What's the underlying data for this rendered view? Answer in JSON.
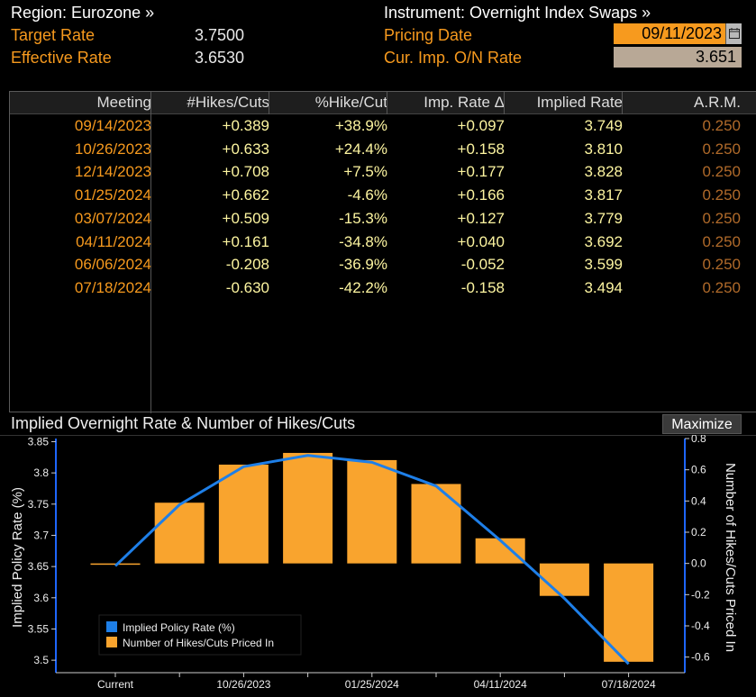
{
  "header": {
    "region": "Region: Eurozone »",
    "instrument": "Instrument: Overnight Index Swaps »",
    "target_rate_label": "Target Rate",
    "target_rate_value": "3.7500",
    "effective_rate_label": "Effective Rate",
    "effective_rate_value": "3.6530",
    "pricing_date_label": "Pricing Date",
    "pricing_date_value": "09/11/2023",
    "cur_imp_label": "Cur. Imp. O/N Rate",
    "cur_imp_value": "3.651"
  },
  "table": {
    "columns": [
      "Meeting",
      "#Hikes/Cuts",
      "%Hike/Cut",
      "Imp. Rate Δ",
      "Implied Rate",
      "A.R.M."
    ],
    "rows": [
      [
        "09/14/2023",
        "+0.389",
        "+38.9%",
        "+0.097",
        "3.749",
        "0.250"
      ],
      [
        "10/26/2023",
        "+0.633",
        "+24.4%",
        "+0.158",
        "3.810",
        "0.250"
      ],
      [
        "12/14/2023",
        "+0.708",
        "+7.5%",
        "+0.177",
        "3.828",
        "0.250"
      ],
      [
        "01/25/2024",
        "+0.662",
        "-4.6%",
        "+0.166",
        "3.817",
        "0.250"
      ],
      [
        "03/07/2024",
        "+0.509",
        "-15.3%",
        "+0.127",
        "3.779",
        "0.250"
      ],
      [
        "04/11/2024",
        "+0.161",
        "-34.8%",
        "+0.040",
        "3.692",
        "0.250"
      ],
      [
        "06/06/2024",
        "-0.208",
        "-36.9%",
        "-0.052",
        "3.599",
        "0.250"
      ],
      [
        "07/18/2024",
        "-0.630",
        "-42.2%",
        "-0.158",
        "3.494",
        "0.250"
      ]
    ]
  },
  "chart_panel": {
    "title": "Implied Overnight Rate & Number of Hikes/Cuts",
    "maximize_label": "Maximize"
  },
  "chart_data": {
    "type": "bar",
    "title": "Implied Overnight Rate & Number of Hikes/Cuts",
    "categories": [
      "Current",
      "09/14/2023",
      "10/26/2023",
      "12/14/2023",
      "01/25/2024",
      "03/07/2024",
      "04/11/2024",
      "06/06/2024",
      "07/18/2024"
    ],
    "x_tick_labels": [
      "Current",
      "10/26/2023",
      "01/25/2024",
      "04/11/2024",
      "07/18/2024"
    ],
    "ylabel": "Implied Policy Rate (%)",
    "ylabel_right": "Number of Hikes/Cuts Priced In",
    "ylim": [
      3.48,
      3.855
    ],
    "ylim_right": [
      -0.7,
      0.8
    ],
    "y_ticks": [
      "3.5",
      "3.55",
      "3.6",
      "3.65",
      "3.7",
      "3.75",
      "3.8",
      "3.85"
    ],
    "y_ticks_right": [
      "-0.6",
      "-0.4",
      "-0.2",
      "0.0",
      "0.2",
      "0.4",
      "0.6",
      "0.8"
    ],
    "series": [
      {
        "name": "Implied Policy Rate (%)",
        "kind": "line",
        "axis": "left",
        "color": "#1e7fe8",
        "values": [
          3.651,
          3.749,
          3.81,
          3.828,
          3.817,
          3.779,
          3.692,
          3.599,
          3.494
        ]
      },
      {
        "name": "Number of Hikes/Cuts Priced In",
        "kind": "bar",
        "axis": "right",
        "color": "#f9a42e",
        "values": [
          0.0,
          0.389,
          0.633,
          0.708,
          0.662,
          0.509,
          0.161,
          -0.208,
          -0.63
        ]
      }
    ],
    "grid": false,
    "legend_position": "bottom-left"
  }
}
